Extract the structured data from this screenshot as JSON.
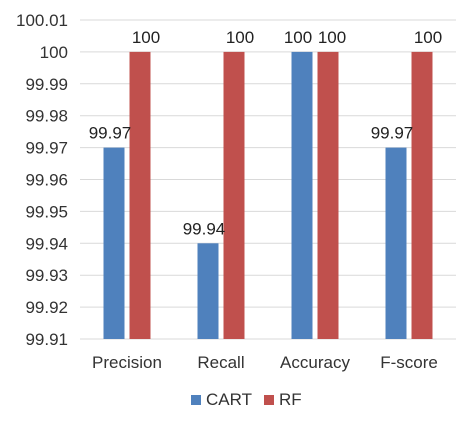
{
  "chart_data": {
    "type": "bar",
    "title": "",
    "xlabel": "",
    "ylabel": "",
    "categories": [
      "Precision",
      "Recall",
      "Accuracy",
      "F-score"
    ],
    "series": [
      {
        "name": "CART",
        "values": [
          99.97,
          99.94,
          100,
          99.97
        ],
        "data_labels": [
          "99.97",
          "99.94",
          "100",
          "99.97"
        ]
      },
      {
        "name": "RF",
        "values": [
          100,
          100,
          100,
          100
        ],
        "data_labels": [
          "100",
          "100",
          "100",
          "100"
        ]
      }
    ],
    "ylim": [
      99.91,
      100.01
    ],
    "ytick_labels": [
      "99.91",
      "99.92",
      "99.93",
      "99.94",
      "99.95",
      "99.96",
      "99.97",
      "99.98",
      "99.99",
      "100",
      "100.01"
    ],
    "grid": true,
    "legend_position": "bottom",
    "colors": {
      "CART": "#4f81bd",
      "RF": "#c0504d",
      "grid": "#d9d9d9",
      "text": "#333333"
    }
  }
}
